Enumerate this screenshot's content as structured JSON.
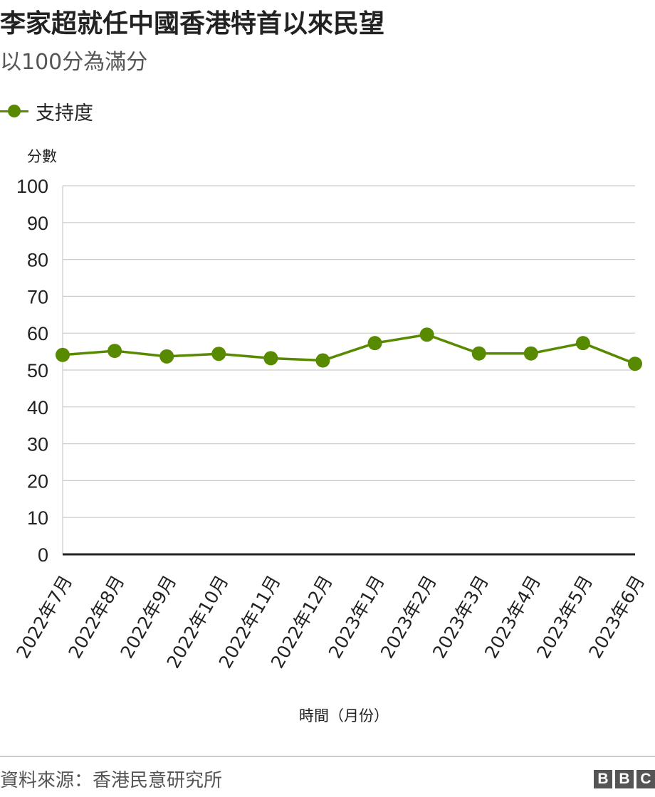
{
  "header": {
    "title": "李家超就任中國香港特首以來民望",
    "subtitle": "以100分為滿分"
  },
  "legend": {
    "label": "支持度"
  },
  "footer": {
    "source": "資料來源：香港民意研究所",
    "logo_letters": [
      "B",
      "B",
      "C"
    ]
  },
  "colors": {
    "series": "#588a00",
    "grid": "#cccccc",
    "baseline": "#222222",
    "text": "#222222"
  },
  "chart_data": {
    "type": "line",
    "ylabel": "分數",
    "xlabel": "時間（月份）",
    "ylim": [
      0,
      100
    ],
    "yticks": [
      0,
      10,
      20,
      30,
      40,
      50,
      60,
      70,
      80,
      90,
      100
    ],
    "grid": true,
    "legend_position": "top-left",
    "categories": [
      "2022年7月",
      "2022年8月",
      "2022年9月",
      "2022年10月",
      "2022年11月",
      "2022年12月",
      "2023年1月",
      "2023年2月",
      "2023年3月",
      "2023年4月",
      "2023年5月",
      "2023年6月"
    ],
    "series": [
      {
        "name": "支持度",
        "values": [
          54.1,
          55.2,
          53.7,
          54.4,
          53.2,
          52.6,
          57.3,
          59.6,
          54.5,
          54.5,
          57.3,
          51.7
        ]
      }
    ]
  }
}
